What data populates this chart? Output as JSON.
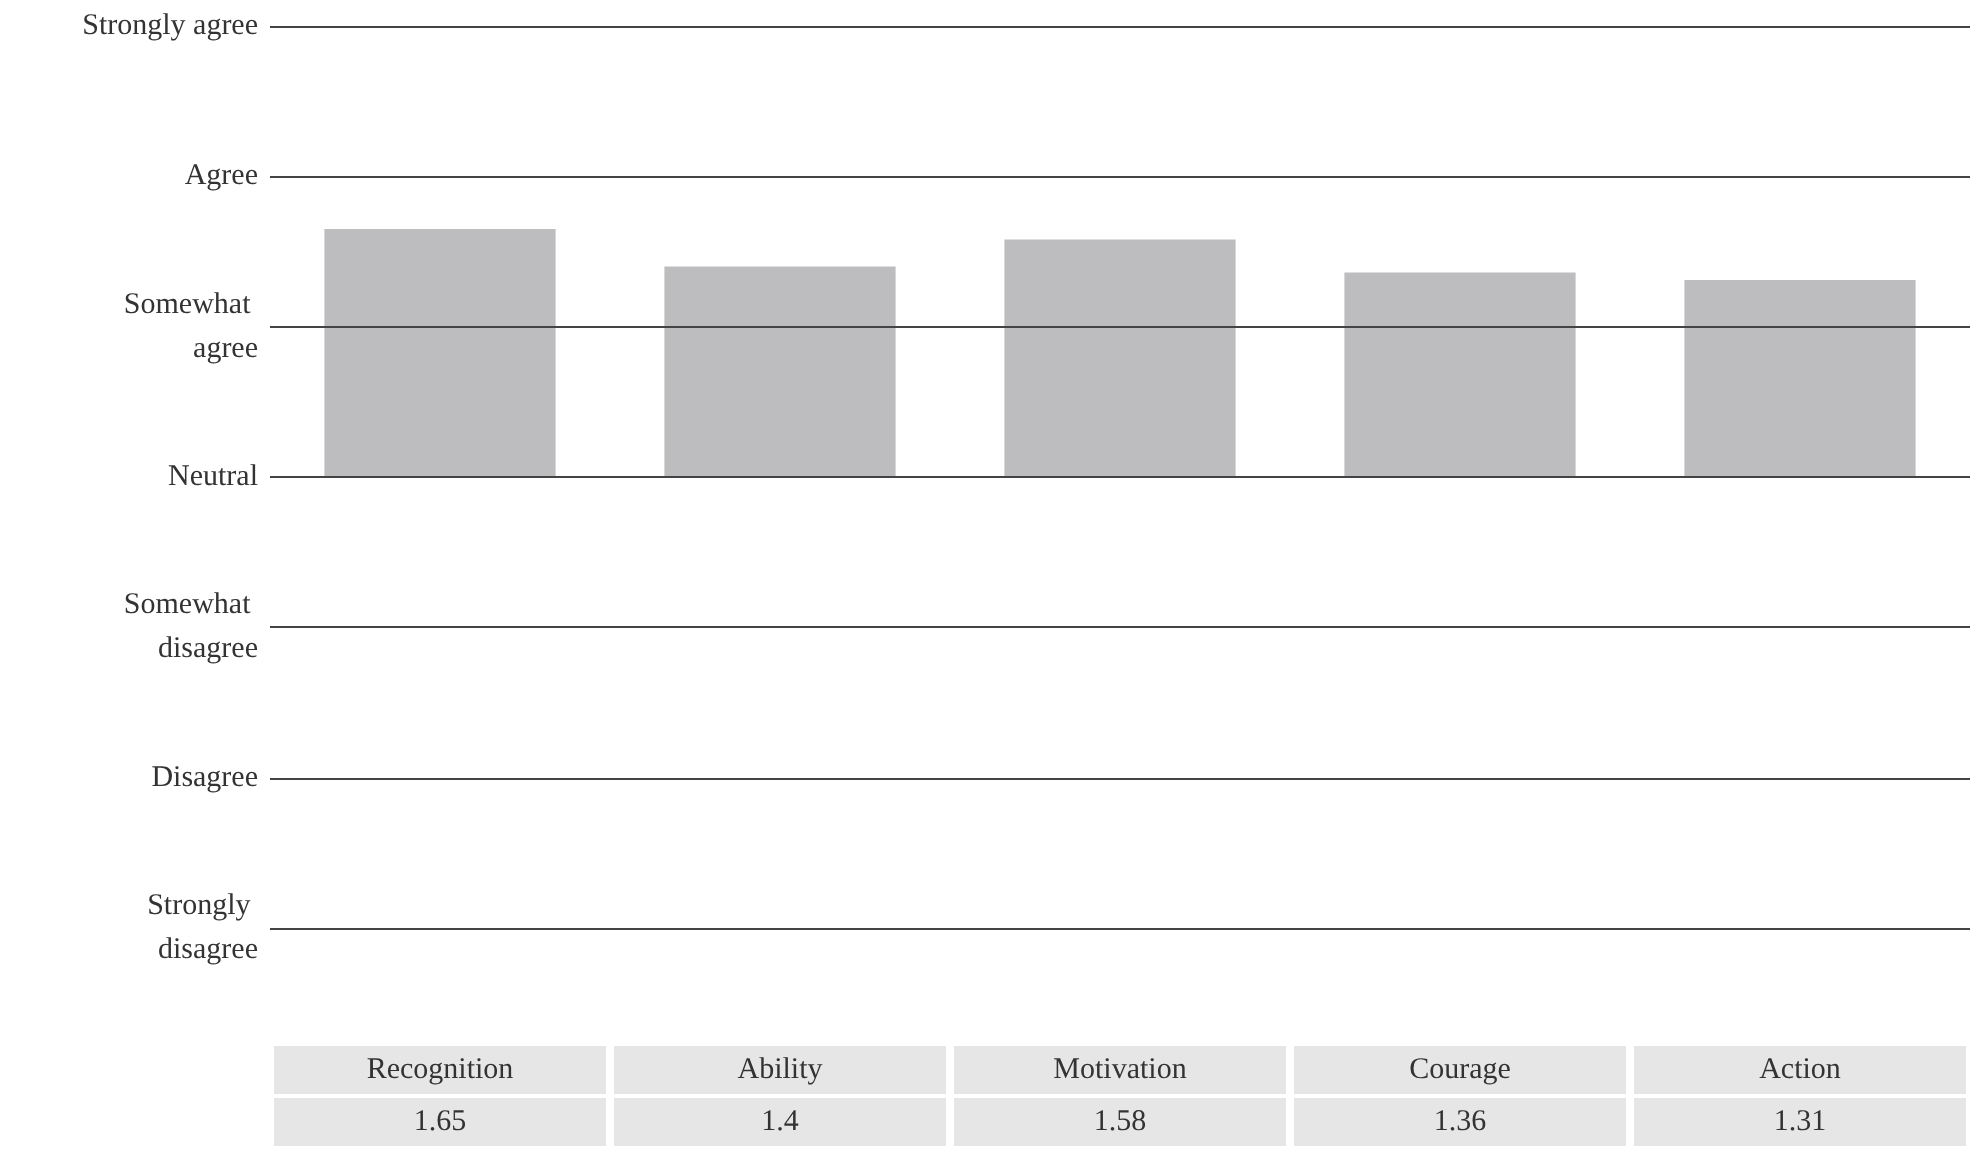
{
  "chart_data": {
    "type": "bar",
    "categories": [
      "Recognition",
      "Ability",
      "Motivation",
      "Courage",
      "Action"
    ],
    "values": [
      1.65,
      1.4,
      1.58,
      1.36,
      1.31
    ],
    "color": "#bdbdbf",
    "ylim": [
      -3,
      3
    ],
    "ref_lines": [
      {
        "axis": "y",
        "value": -3,
        "label": "Strongly disagree",
        "color": "#444444"
      },
      {
        "axis": "y",
        "value": -2,
        "label": "Disagree",
        "color": "#444444"
      },
      {
        "axis": "y",
        "value": -1,
        "label": "Somewhat disagree",
        "color": "#444444"
      },
      {
        "axis": "y",
        "value": 0,
        "label": "Neutral",
        "color": "#444444"
      },
      {
        "axis": "y",
        "value": 1,
        "label": "Somewhat agree",
        "color": "#444444"
      },
      {
        "axis": "y",
        "value": 2,
        "label": "Agree",
        "color": "#444444"
      },
      {
        "axis": "y",
        "value": 3,
        "label": "Strongly agree",
        "color": "#444444"
      }
    ],
    "data_labels": true
  }
}
